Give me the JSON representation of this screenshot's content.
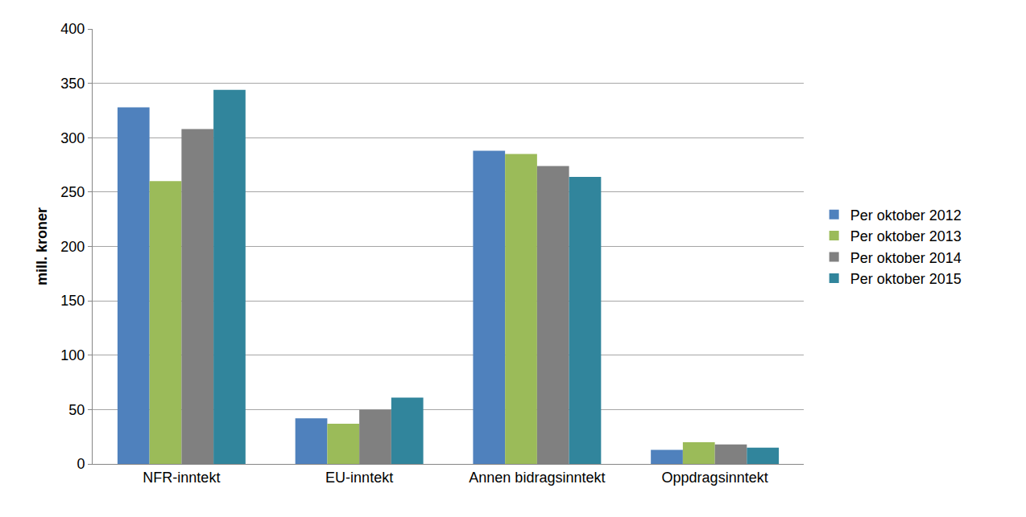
{
  "chart_data": {
    "type": "bar",
    "ylabel": "mill. kroner",
    "categories": [
      "NFR-inntekt",
      "EU-inntekt",
      "Annen bidragsinntekt",
      "Oppdragsinntekt"
    ],
    "series": [
      {
        "name": "Per oktober 2012",
        "color": "#4f81bd",
        "values": [
          328,
          42,
          288,
          13
        ]
      },
      {
        "name": "Per oktober 2013",
        "color": "#9bbb59",
        "values": [
          260,
          37,
          285,
          20
        ]
      },
      {
        "name": "Per oktober 2014",
        "color": "#808080",
        "values": [
          308,
          50,
          274,
          18
        ]
      },
      {
        "name": "Per oktober 2015",
        "color": "#31859c",
        "values": [
          344,
          61,
          264,
          15
        ]
      }
    ],
    "ylim": [
      0,
      400
    ],
    "yticks": [
      0,
      50,
      100,
      150,
      200,
      250,
      300,
      350,
      400
    ],
    "grid": true,
    "legend": "right"
  }
}
